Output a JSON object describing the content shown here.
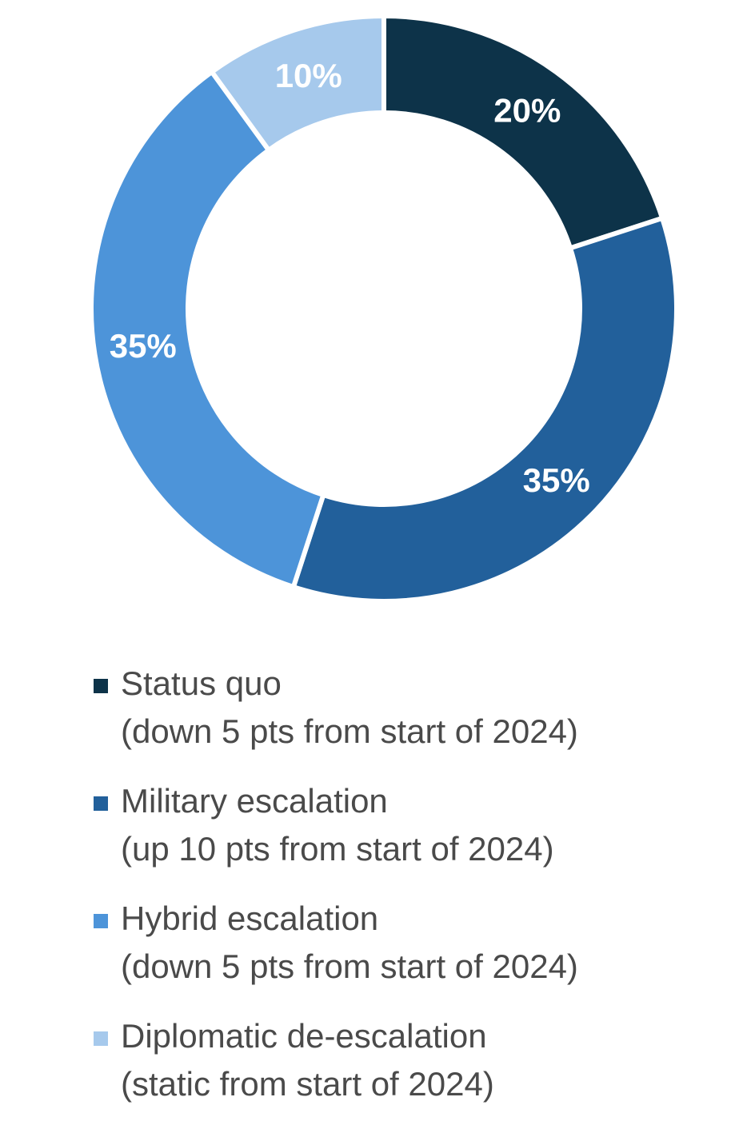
{
  "chart_data": {
    "type": "pie",
    "categories": [
      "Status quo",
      "Military escalation",
      "Hybrid escalation",
      "Diplomatic de-escalation"
    ],
    "descriptions": [
      "(down 5 pts from start of 2024)",
      "(up 10 pts from start of 2024)",
      "(down 5 pts from start of 2024)",
      "(static from start of 2024)"
    ],
    "values": [
      20,
      35,
      35,
      10
    ],
    "value_labels": [
      "20%",
      "35%",
      "35%",
      "10%"
    ],
    "colors": [
      "#0d3349",
      "#22609b",
      "#4d94d9",
      "#a6c9ec"
    ]
  }
}
